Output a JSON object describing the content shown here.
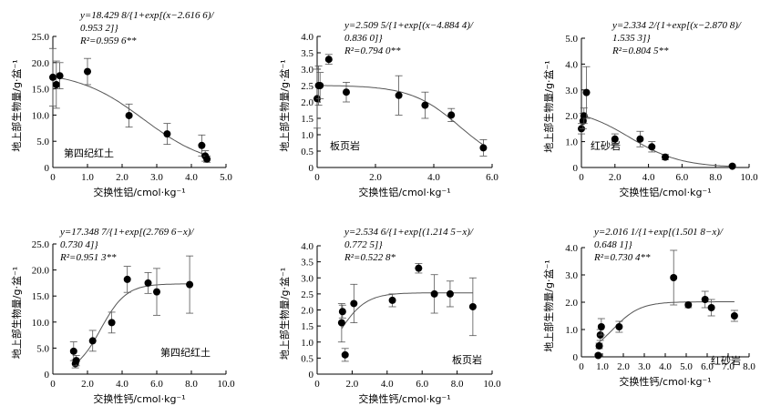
{
  "chart_data": [
    {
      "type": "scatter",
      "xlabel": "交换性铝/cmol·kg⁻¹",
      "ylabel": "地上部生物量/g·盆⁻¹",
      "xlim": [
        0,
        5.0
      ],
      "ylim": [
        0,
        25.0
      ],
      "xticks": [
        "0",
        "1.0",
        "2.0",
        "3.0",
        "4.0",
        "5.0"
      ],
      "yticks": [
        "0",
        "5.0",
        "10.0",
        "15.0",
        "20.0",
        "25.0"
      ],
      "soil_label": "第四纪红土",
      "equation": [
        "y=18.429 8/{1+exp[(x−2.616 6)/",
        "0.953 2]}",
        "R²=0.959 6**"
      ],
      "fit": {
        "form": "decreasing",
        "A": 18.4298,
        "x0": 2.6166,
        "k": 0.9532
      },
      "points": [
        {
          "x": 0.0,
          "y": 17.2,
          "err": 5.5
        },
        {
          "x": 0.1,
          "y": 15.8,
          "err": 4.5
        },
        {
          "x": 0.2,
          "y": 17.5,
          "err": 2.5
        },
        {
          "x": 1.0,
          "y": 18.3,
          "err": 2.5
        },
        {
          "x": 2.2,
          "y": 9.9,
          "err": 2.2
        },
        {
          "x": 3.3,
          "y": 6.4,
          "err": 2.0
        },
        {
          "x": 4.3,
          "y": 4.2,
          "err": 2.0
        },
        {
          "x": 4.4,
          "y": 2.2,
          "err": 1.0
        },
        {
          "x": 4.45,
          "y": 1.6,
          "err": 0.6
        }
      ]
    },
    {
      "type": "scatter",
      "xlabel": "交换性铝/cmol·kg⁻¹",
      "ylabel": "地上部生物量/g·盆⁻¹",
      "xlim": [
        0,
        6.0
      ],
      "ylim": [
        0,
        4.0
      ],
      "xticks": [
        "0",
        "2.0",
        "4.0",
        "6.0"
      ],
      "yticks": [
        "0",
        "0.5",
        "1.0",
        "1.5",
        "2.0",
        "2.5",
        "3.0",
        "3.5",
        "4.0"
      ],
      "soil_label": "板页岩",
      "equation": [
        "y=2.509 5/{1+exp[(x−4.884 4)/",
        "0.836 0]}",
        "R²=0.794 0**"
      ],
      "fit": {
        "form": "decreasing",
        "A": 2.5095,
        "x0": 4.8844,
        "k": 0.836
      },
      "points": [
        {
          "x": 0.0,
          "y": 2.1,
          "err": 0.9
        },
        {
          "x": 0.05,
          "y": 2.5,
          "err": 0.6
        },
        {
          "x": 0.1,
          "y": 2.5,
          "err": 0.4
        },
        {
          "x": 0.4,
          "y": 3.3,
          "err": 0.15
        },
        {
          "x": 1.0,
          "y": 2.3,
          "err": 0.3
        },
        {
          "x": 2.8,
          "y": 2.2,
          "err": 0.6
        },
        {
          "x": 3.7,
          "y": 1.9,
          "err": 0.4
        },
        {
          "x": 4.6,
          "y": 1.6,
          "err": 0.2
        },
        {
          "x": 5.7,
          "y": 0.6,
          "err": 0.25
        }
      ]
    },
    {
      "type": "scatter",
      "xlabel": "交换性铝/cmol·kg⁻¹",
      "ylabel": "地上部生物量/g·盆⁻¹",
      "xlim": [
        0,
        10.0
      ],
      "ylim": [
        0,
        5.0
      ],
      "xticks": [
        "0",
        "2.0",
        "4.0",
        "6.0",
        "8.0",
        "10.0"
      ],
      "yticks": [
        "0",
        "1.0",
        "2.0",
        "3.0",
        "4.0",
        "5.0"
      ],
      "soil_label": "红砂岩",
      "equation": [
        "y=2.334 2/{1+exp[(x−2.870 8)/",
        "1.535 3]}",
        "R²=0.804 5**"
      ],
      "fit": {
        "form": "decreasing",
        "A": 2.3342,
        "x0": 2.8708,
        "k": 1.5353
      },
      "points": [
        {
          "x": 0.0,
          "y": 1.5,
          "err": 0.2
        },
        {
          "x": 0.1,
          "y": 1.8,
          "err": 0.3
        },
        {
          "x": 0.15,
          "y": 2.0,
          "err": 0.3
        },
        {
          "x": 0.3,
          "y": 2.9,
          "err": 1.0
        },
        {
          "x": 2.0,
          "y": 1.1,
          "err": 0.2
        },
        {
          "x": 3.5,
          "y": 1.1,
          "err": 0.3
        },
        {
          "x": 4.2,
          "y": 0.8,
          "err": 0.2
        },
        {
          "x": 5.0,
          "y": 0.4,
          "err": 0.1
        },
        {
          "x": 9.0,
          "y": 0.05,
          "err": 0.05
        }
      ]
    },
    {
      "type": "scatter",
      "xlabel": "交换性钙/cmol·kg⁻¹",
      "ylabel": "地上部生物量/g·盆⁻¹",
      "xlim": [
        0,
        10.0
      ],
      "ylim": [
        0,
        25.0
      ],
      "xticks": [
        "0",
        "2.0",
        "4.0",
        "6.0",
        "8.0",
        "10.0"
      ],
      "yticks": [
        "0",
        "5.0",
        "10.0",
        "15.0",
        "20.0",
        "25.0"
      ],
      "soil_label": "第四纪红土",
      "equation": [
        "y=17.348 7/{1+exp[(2.769 6−x)/",
        "0.730 4]}",
        "R²=0.951 3**"
      ],
      "fit": {
        "form": "increasing",
        "A": 17.3487,
        "x0": 2.7696,
        "k": 0.7304
      },
      "points": [
        {
          "x": 1.2,
          "y": 4.4,
          "err": 1.8
        },
        {
          "x": 1.3,
          "y": 2.0,
          "err": 0.8
        },
        {
          "x": 1.35,
          "y": 2.6,
          "err": 1.0
        },
        {
          "x": 2.3,
          "y": 6.4,
          "err": 2.0
        },
        {
          "x": 3.4,
          "y": 9.9,
          "err": 2.0
        },
        {
          "x": 4.3,
          "y": 18.2,
          "err": 2.5
        },
        {
          "x": 5.5,
          "y": 17.5,
          "err": 2.0
        },
        {
          "x": 6.0,
          "y": 15.8,
          "err": 4.5
        },
        {
          "x": 7.9,
          "y": 17.2,
          "err": 5.5
        }
      ]
    },
    {
      "type": "scatter",
      "xlabel": "交换性钙/cmol·kg⁻¹",
      "ylabel": "地上部生物量/g·盆⁻¹",
      "xlim": [
        0,
        10.0
      ],
      "ylim": [
        0,
        4.0
      ],
      "xticks": [
        "0",
        "2.0",
        "4.0",
        "6.0",
        "8.0",
        "10.0"
      ],
      "yticks": [
        "0",
        "0.5",
        "1.0",
        "1.5",
        "2.0",
        "2.5",
        "3.0",
        "3.5",
        "4.0"
      ],
      "soil_label": "板页岩",
      "equation": [
        "y=2.534 6/{1+exp[(1.214 5−x)/",
        "0.772 5]}",
        "R²=0.522 8*"
      ],
      "fit": {
        "form": "increasing",
        "A": 2.5346,
        "x0": 1.2145,
        "k": 0.7725
      },
      "points": [
        {
          "x": 1.4,
          "y": 1.6,
          "err": 0.6
        },
        {
          "x": 1.45,
          "y": 1.95,
          "err": 0.2
        },
        {
          "x": 1.6,
          "y": 0.6,
          "err": 0.2
        },
        {
          "x": 2.1,
          "y": 2.2,
          "err": 0.6
        },
        {
          "x": 4.3,
          "y": 2.3,
          "err": 0.2
        },
        {
          "x": 5.8,
          "y": 3.3,
          "err": 0.15
        },
        {
          "x": 6.7,
          "y": 2.5,
          "err": 0.6
        },
        {
          "x": 7.6,
          "y": 2.5,
          "err": 0.4
        },
        {
          "x": 8.9,
          "y": 2.1,
          "err": 0.9
        }
      ]
    },
    {
      "type": "scatter",
      "xlabel": "交换性钙/cmol·kg⁻¹",
      "ylabel": "地上部生物量/g·盆⁻¹",
      "xlim": [
        0,
        8.0
      ],
      "ylim": [
        0,
        4.0
      ],
      "xticks": [
        "0",
        "1.0",
        "2.0",
        "3.0",
        "4.0",
        "5.0",
        "6.0",
        "7.0",
        "8.0"
      ],
      "yticks": [
        "0",
        "1.0",
        "2.0",
        "3.0",
        "4.0"
      ],
      "soil_label": "红砂岩",
      "equation": [
        "y=2.016 1/{1+exp[(1.501 8−x)/",
        "0.648 1]}",
        "R²=0.730 4**"
      ],
      "fit": {
        "form": "increasing",
        "A": 2.0161,
        "x0": 1.5018,
        "k": 0.6481
      },
      "points": [
        {
          "x": 0.8,
          "y": 0.05,
          "err": 0.05
        },
        {
          "x": 0.85,
          "y": 0.4,
          "err": 0.1
        },
        {
          "x": 0.9,
          "y": 0.8,
          "err": 0.2
        },
        {
          "x": 0.95,
          "y": 1.1,
          "err": 0.3
        },
        {
          "x": 1.8,
          "y": 1.1,
          "err": 0.2
        },
        {
          "x": 4.4,
          "y": 2.9,
          "err": 1.0
        },
        {
          "x": 5.1,
          "y": 1.9,
          "err": 0.1
        },
        {
          "x": 5.9,
          "y": 2.1,
          "err": 0.3
        },
        {
          "x": 6.2,
          "y": 1.8,
          "err": 0.3
        },
        {
          "x": 7.3,
          "y": 1.5,
          "err": 0.2
        }
      ]
    }
  ]
}
